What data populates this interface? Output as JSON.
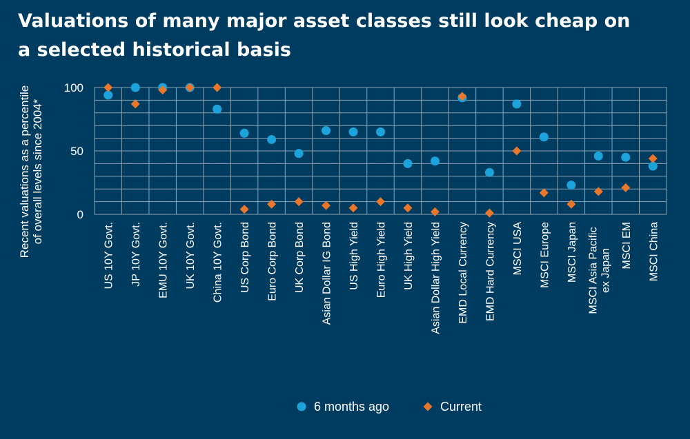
{
  "chart_data": {
    "type": "scatter",
    "title": "Valuations of many major asset classes still look cheap on a selected historical basis",
    "ylabel_lines": [
      "Recent valuations as a percentile",
      "of overall levels since 2004*"
    ],
    "xlabel": "",
    "ylim": [
      0,
      100
    ],
    "yticks": [
      "0",
      "50",
      "100"
    ],
    "grid": true,
    "legend_position": "bottom-center",
    "categories": [
      [
        "US 10Y Govt."
      ],
      [
        "JP 10Y Govt."
      ],
      [
        "EMU 10Y Govt."
      ],
      [
        "UK 10Y Govt."
      ],
      [
        "China 10Y Govt."
      ],
      [
        "US Corp Bond"
      ],
      [
        "Euro Corp Bond"
      ],
      [
        "UK Corp Bond"
      ],
      [
        "Asian Dollar IG Bond"
      ],
      [
        "US High Yield"
      ],
      [
        "Euro High Yield"
      ],
      [
        "UK High Yield"
      ],
      [
        "Asian Dollar High Yield"
      ],
      [
        "EMD Local Currency"
      ],
      [
        "EMD Hard Currency"
      ],
      [
        "MSCI USA"
      ],
      [
        "MSCI Europe"
      ],
      [
        "MSCI Japan"
      ],
      [
        "MSCI Asia Pacific",
        "ex Japan"
      ],
      [
        "MSCI EM"
      ],
      [
        "MSCI China"
      ]
    ],
    "series": [
      {
        "name": "6 months ago",
        "marker": "circle",
        "color": "#1ca3dc",
        "values": [
          94,
          100,
          100,
          100,
          83,
          64,
          59,
          48,
          66,
          65,
          65,
          40,
          42,
          92,
          33,
          87,
          61,
          23,
          46,
          45,
          38
        ]
      },
      {
        "name": "Current",
        "marker": "diamond",
        "color": "#e8762b",
        "values": [
          100,
          87,
          98,
          100,
          100,
          4,
          8,
          10,
          7,
          5,
          10,
          5,
          2,
          93,
          1,
          50,
          17,
          8,
          18,
          21,
          44
        ]
      }
    ]
  }
}
